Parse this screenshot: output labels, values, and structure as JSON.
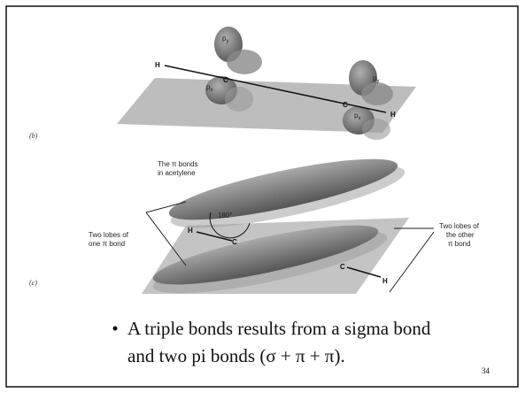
{
  "figure_b": {
    "label": "(b)",
    "orbitals": [
      {
        "base": "p",
        "sub": "y"
      },
      {
        "base": "p",
        "sub": "x"
      },
      {
        "base": "p",
        "sub": "y"
      },
      {
        "base": "p",
        "sub": "x"
      }
    ],
    "atoms": [
      "H",
      "C",
      "C",
      "H"
    ]
  },
  "figure_c": {
    "label": "(c)",
    "caption": [
      "The π bonds",
      "in acetylene"
    ],
    "angle": "180°",
    "left_note": [
      "Two lobes of",
      "one π bond"
    ],
    "right_note": [
      "Two lobes of",
      "the other",
      "π bond"
    ],
    "atoms": [
      "H",
      "C",
      "C",
      "H"
    ]
  },
  "bullet": {
    "lines": [
      "A triple bonds results from a sigma bond",
      "and two pi bonds (σ + π + π)."
    ]
  },
  "page_number": "34"
}
